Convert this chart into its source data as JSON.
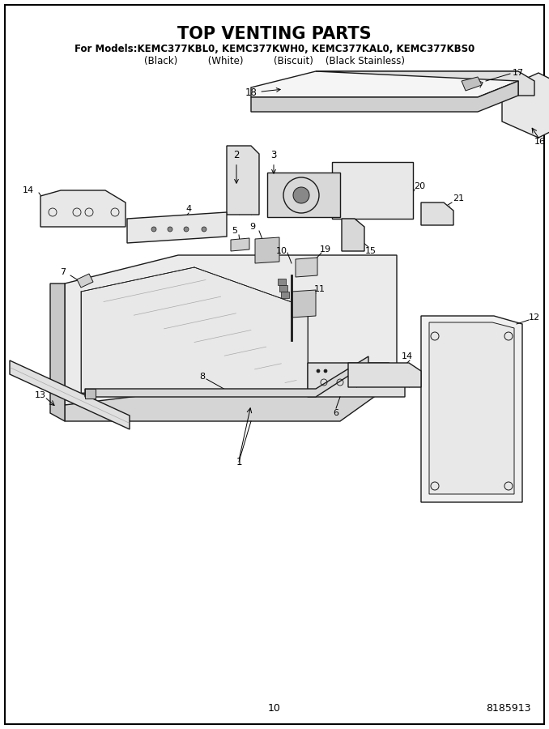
{
  "title": "TOP VENTING PARTS",
  "subtitle1": "For Models:KEMC377KBL0, KEMC377KWH0, KEMC377KAL0, KEMC377KBS0",
  "subtitle2": "(Black)          (White)          (Biscuit)    (Black Stainless)",
  "page_number": "10",
  "doc_number": "8185913",
  "background_color": "#ffffff",
  "figw": 6.78,
  "figh": 9.0,
  "dpi": 100
}
